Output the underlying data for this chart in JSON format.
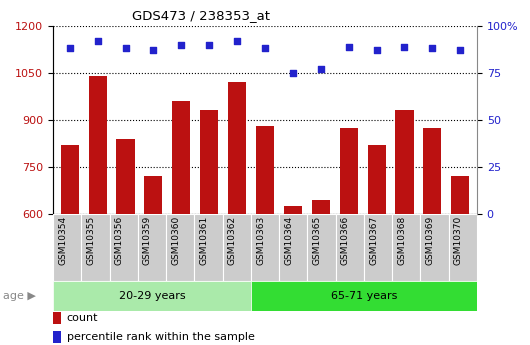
{
  "title": "GDS473 / 238353_at",
  "categories": [
    "GSM10354",
    "GSM10355",
    "GSM10356",
    "GSM10359",
    "GSM10360",
    "GSM10361",
    "GSM10362",
    "GSM10363",
    "GSM10364",
    "GSM10365",
    "GSM10366",
    "GSM10367",
    "GSM10368",
    "GSM10369",
    "GSM10370"
  ],
  "counts": [
    820,
    1040,
    840,
    720,
    960,
    930,
    1020,
    880,
    625,
    645,
    875,
    820,
    930,
    875,
    720
  ],
  "percentile_ranks": [
    88,
    92,
    88,
    87,
    90,
    90,
    92,
    88,
    75,
    77,
    89,
    87,
    89,
    88,
    87
  ],
  "group1_label": "20-29 years",
  "group2_label": "65-71 years",
  "group1_count": 7,
  "group2_count": 8,
  "ylim_left": [
    600,
    1200
  ],
  "ylim_right": [
    0,
    100
  ],
  "yticks_left": [
    600,
    750,
    900,
    1050,
    1200
  ],
  "yticks_right": [
    0,
    25,
    50,
    75,
    100
  ],
  "bar_color": "#bb1111",
  "dot_color": "#2222cc",
  "group1_bg": "#aaeaaa",
  "group2_bg": "#33dd33",
  "tick_bg": "#cccccc",
  "legend_bar_label": "count",
  "legend_dot_label": "percentile rank within the sample",
  "age_label": "age",
  "figsize": [
    5.3,
    3.45
  ],
  "dpi": 100
}
